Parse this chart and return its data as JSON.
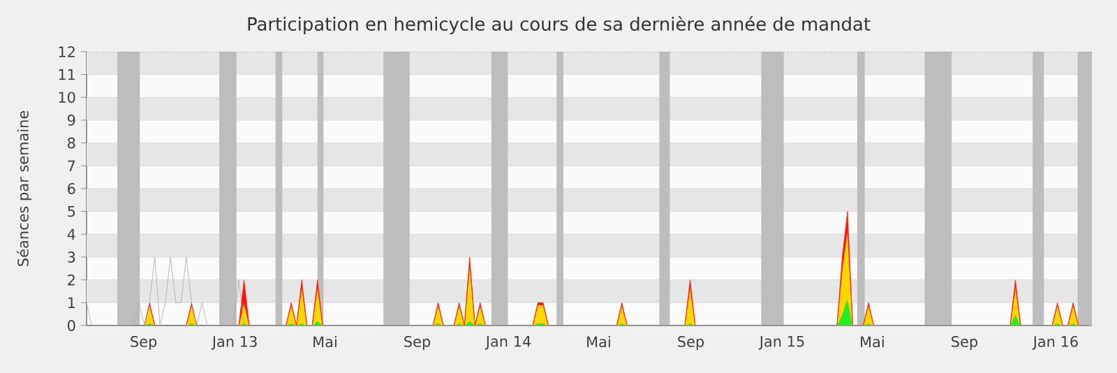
{
  "chart_data": {
    "type": "area",
    "title": "Participation en hemicycle au cours de sa dernière année de mandat",
    "ylabel": "Séances par semaine",
    "stacked": true,
    "grid": "y",
    "xlim": [
      "2012-06-17",
      "2016-02-18"
    ],
    "ylim": [
      0,
      12
    ],
    "yticks": [
      0,
      1,
      2,
      3,
      4,
      5,
      6,
      7,
      8,
      9,
      10,
      11,
      12
    ],
    "xticks": [
      {
        "value": "2012-09-01",
        "label": "Sep"
      },
      {
        "value": "2013-01-01",
        "label": "Jan 13"
      },
      {
        "value": "2013-05-01",
        "label": "Mai"
      },
      {
        "value": "2013-09-01",
        "label": "Sep"
      },
      {
        "value": "2014-01-01",
        "label": "Jan 14"
      },
      {
        "value": "2014-05-01",
        "label": "Mai"
      },
      {
        "value": "2014-09-01",
        "label": "Sep"
      },
      {
        "value": "2015-01-01",
        "label": "Jan 15"
      },
      {
        "value": "2015-05-01",
        "label": "Mai"
      },
      {
        "value": "2015-09-01",
        "label": "Sep"
      },
      {
        "value": "2016-01-01",
        "label": "Jan 16"
      }
    ],
    "bands": [
      {
        "axis": "x",
        "from": "2012-07-28",
        "to": "2012-08-27",
        "color": "#bdbdbd"
      },
      {
        "axis": "x",
        "from": "2012-12-11",
        "to": "2013-01-03",
        "color": "#bdbdbd"
      },
      {
        "axis": "x",
        "from": "2013-02-24",
        "to": "2013-03-05",
        "color": "#bdbdbd"
      },
      {
        "axis": "x",
        "from": "2013-04-21",
        "to": "2013-04-29",
        "color": "#bdbdbd"
      },
      {
        "axis": "x",
        "from": "2013-07-18",
        "to": "2013-08-22",
        "color": "#bdbdbd"
      },
      {
        "axis": "x",
        "from": "2013-12-09",
        "to": "2013-12-31",
        "color": "#bdbdbd"
      },
      {
        "axis": "x",
        "from": "2014-03-06",
        "to": "2014-03-15",
        "color": "#bdbdbd"
      },
      {
        "axis": "x",
        "from": "2014-07-21",
        "to": "2014-08-04",
        "color": "#bdbdbd"
      },
      {
        "axis": "x",
        "from": "2014-12-04",
        "to": "2015-01-03",
        "color": "#bdbdbd"
      },
      {
        "axis": "x",
        "from": "2015-04-11",
        "to": "2015-04-21",
        "color": "#bdbdbd"
      },
      {
        "axis": "x",
        "from": "2015-07-10",
        "to": "2015-08-15",
        "color": "#bdbdbd"
      },
      {
        "axis": "x",
        "from": "2015-12-01",
        "to": "2015-12-16",
        "color": "#bdbdbd"
      },
      {
        "axis": "x",
        "from": "2016-01-30",
        "to": "2016-02-18",
        "color": "#bdbdbd"
      }
    ],
    "x": [
      "2012-06-17",
      "2012-09-02",
      "2012-09-09",
      "2012-09-16",
      "2012-10-28",
      "2012-11-04",
      "2012-11-11",
      "2013-01-06",
      "2013-01-13",
      "2013-01-20",
      "2013-03-10",
      "2013-03-17",
      "2013-03-24",
      "2013-03-31",
      "2013-04-07",
      "2013-04-14",
      "2013-04-21",
      "2013-04-28",
      "2013-09-22",
      "2013-09-29",
      "2013-10-06",
      "2013-10-20",
      "2013-10-27",
      "2013-11-03",
      "2013-11-10",
      "2013-11-17",
      "2013-11-24",
      "2013-12-01",
      "2014-02-02",
      "2014-02-09",
      "2014-02-16",
      "2014-02-23",
      "2014-05-25",
      "2014-06-01",
      "2014-06-08",
      "2014-08-24",
      "2014-08-31",
      "2014-09-07",
      "2015-03-15",
      "2015-03-22",
      "2015-03-29",
      "2015-04-05",
      "2015-04-19",
      "2015-04-26",
      "2015-05-03",
      "2015-11-01",
      "2015-11-08",
      "2015-11-15",
      "2015-12-27",
      "2016-01-03",
      "2016-01-10",
      "2016-01-17",
      "2016-01-24",
      "2016-01-31",
      "2016-02-14"
    ],
    "series": [
      {
        "type": "line",
        "color": "#aaaaaa",
        "x": [
          "2012-06-17",
          "2012-06-24",
          "2012-08-19",
          "2012-08-26",
          "2012-09-02",
          "2012-09-09",
          "2012-09-16",
          "2012-09-23",
          "2012-09-30",
          "2012-10-07",
          "2012-10-14",
          "2012-10-21",
          "2012-10-28",
          "2012-11-04",
          "2012-11-11",
          "2012-11-18",
          "2012-11-25",
          "2012-12-30",
          "2013-01-06",
          "2013-01-13",
          "2016-02-14"
        ],
        "values": [
          1,
          0,
          0,
          1,
          0,
          1,
          3,
          0,
          1,
          3,
          1,
          1,
          3,
          1,
          0,
          1,
          0,
          0,
          2,
          0,
          0
        ]
      },
      {
        "color": "#22ee22",
        "values": [
          0,
          0,
          0.1,
          0,
          0,
          0.1,
          0,
          0,
          0.1,
          0,
          0,
          0.1,
          0,
          0.1,
          0,
          0,
          0.2,
          0,
          0,
          0.1,
          0,
          0,
          0.1,
          0,
          0.2,
          0,
          0.1,
          0,
          0,
          0.1,
          0.1,
          0,
          0,
          0.1,
          0,
          0,
          0.1,
          0,
          0,
          0.5,
          1.2,
          0,
          0,
          0.1,
          0,
          0,
          0.5,
          0,
          0,
          0.1,
          0,
          0,
          0.1,
          0,
          0
        ]
      },
      {
        "color": "#ffd700",
        "values": [
          0,
          0,
          0.8,
          0,
          0,
          0.8,
          0,
          0,
          0.9,
          0,
          0,
          0.8,
          0,
          1.6,
          0,
          0,
          1.5,
          0,
          0,
          0.8,
          0,
          0,
          0.8,
          0,
          2.5,
          0,
          0.8,
          0,
          0,
          0.8,
          0.8,
          0,
          0,
          0.8,
          0,
          0,
          1.6,
          0,
          0,
          2,
          3,
          0,
          0,
          0.8,
          0,
          0,
          1.2,
          0,
          0,
          0.8,
          0,
          0,
          0.8,
          0,
          0
        ]
      },
      {
        "color": "#ff1010",
        "values": [
          0,
          0,
          0.1,
          0,
          0,
          0.1,
          0,
          0,
          1,
          0,
          0,
          0.1,
          0,
          0.3,
          0,
          0,
          0.3,
          0,
          0,
          0.1,
          0,
          0,
          0.1,
          0,
          0.3,
          0,
          0.1,
          0,
          0,
          0.1,
          0.1,
          0,
          0,
          0.1,
          0,
          0,
          0.3,
          0,
          0,
          0.5,
          0.8,
          0,
          0,
          0.1,
          0,
          0,
          0.3,
          0,
          0,
          0.1,
          0,
          0,
          0.1,
          0,
          0
        ]
      }
    ]
  }
}
